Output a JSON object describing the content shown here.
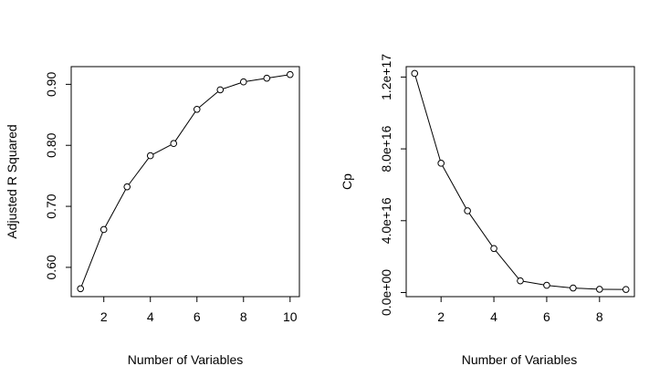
{
  "chart_data": [
    {
      "type": "line",
      "title": "",
      "xlabel": "Number of Variables",
      "ylabel": "Adjusted R Squared",
      "x": [
        1,
        2,
        3,
        4,
        5,
        6,
        7,
        8,
        9,
        10
      ],
      "series": [
        {
          "values": [
            0.565,
            0.662,
            0.732,
            0.783,
            0.803,
            0.859,
            0.891,
            0.904,
            0.91,
            0.916
          ]
        }
      ],
      "xlim": [
        0.6,
        10.4
      ],
      "ylim": [
        0.552,
        0.929
      ],
      "xticks": [
        2,
        4,
        6,
        8,
        10
      ],
      "xtick_labels": [
        "2",
        "4",
        "6",
        "8",
        "10"
      ],
      "yticks": [
        0.6,
        0.7,
        0.8,
        0.9
      ],
      "ytick_labels": [
        "0.60",
        "0.70",
        "0.80",
        "0.90"
      ],
      "marker": "open-circle",
      "grid": false,
      "legend": "none",
      "color": "#000000"
    },
    {
      "type": "line",
      "title": "",
      "xlabel": "Number of Variables",
      "ylabel": "Cp",
      "x": [
        1,
        2,
        3,
        4,
        5,
        6,
        7,
        8,
        9
      ],
      "series": [
        {
          "values": [
            1.22e+17,
            7.2e+16,
            4.55e+16,
            2.45e+16,
            6500000000000000.0,
            4000000000000000.0,
            2500000000000000.0,
            1800000000000000.0,
            1700000000000000.0
          ]
        }
      ],
      "xlim": [
        0.68,
        9.32
      ],
      "ylim": [
        -2300000000000000.0,
        1.258e+17
      ],
      "xticks": [
        2,
        4,
        6,
        8
      ],
      "xtick_labels": [
        "2",
        "4",
        "6",
        "8"
      ],
      "yticks": [
        0,
        4e+16,
        8e+16,
        1.2e+17
      ],
      "ytick_labels": [
        "0.0e+00",
        "4.0e+16",
        "8.0e+16",
        "1.2e+17"
      ],
      "marker": "open-circle",
      "grid": false,
      "legend": "none",
      "color": "#000000"
    }
  ]
}
